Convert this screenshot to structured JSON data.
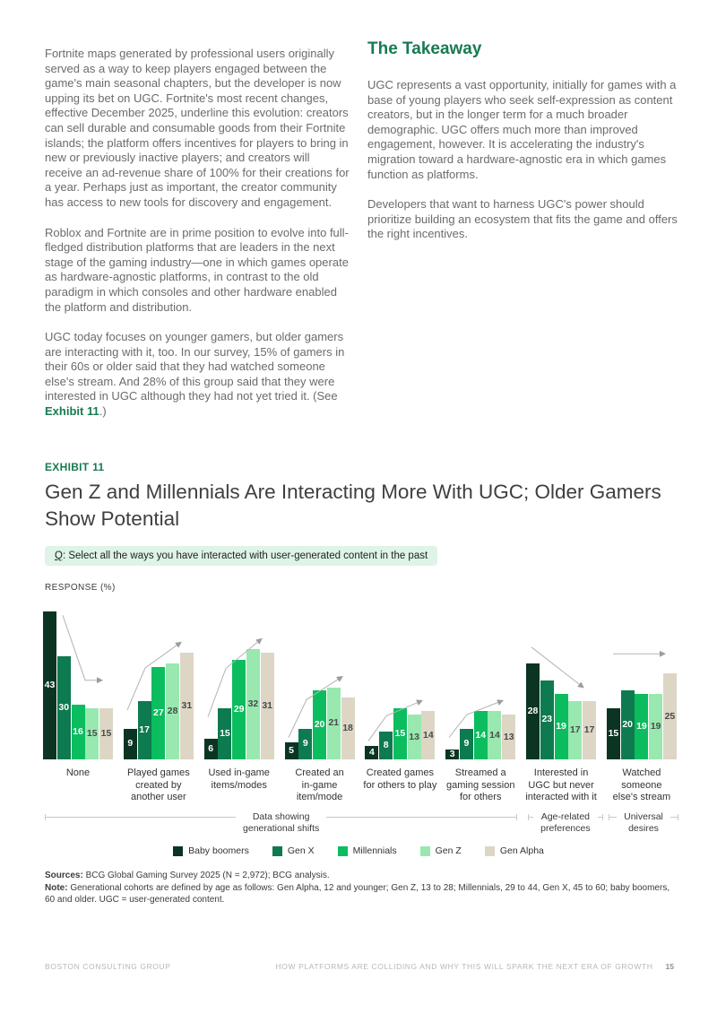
{
  "article": {
    "left_paragraphs": [
      "Fortnite maps generated by professional users originally served as a way to keep players engaged between the game's main seasonal chapters, but the developer is now upping its bet on UGC. Fortnite's most recent changes, effective December 2025, underline this evolution: creators can sell durable and consumable goods from their Fortnite islands; the platform offers incentives for players to bring in new or previously inactive players; and creators will receive an ad-revenue share of 100% for their creations for a year. Perhaps just as important, the creator community has access to new tools for discovery and engagement.",
      "Roblox and Fortnite are in prime position to evolve into full-fledged distribution platforms that are leaders in the next stage of the gaming industry—one in which games operate as hardware-agnostic platforms, in contrast to the old paradigm in which consoles and other hardware enabled the platform and distribution.",
      "UGC today focuses on younger gamers, but older gamers are interacting with it, too. In our survey, 15% of gamers in their 60s or older said that they had watched someone else's stream. And 28% of this group said that they were interested in UGC although they had not yet tried it. (See "
    ],
    "exhibit_link": "Exhibit 11",
    "exhibit_link_suffix": ".)",
    "takeaway_heading": "The Takeaway",
    "takeaway_paragraphs": [
      "UGC represents a vast opportunity, initially for games with a base of young players who seek self-expression as content creators, but in the longer term for a much broader demographic. UGC offers much more than improved engagement, however. It is accelerating the industry's migration toward a hardware-agnostic era in which games function as platforms.",
      "Developers that want to harness UGC's power should prioritize building an ecosystem that fits the game and offers the right incentives."
    ]
  },
  "exhibit": {
    "label": "EXHIBIT 11",
    "title": "Gen Z and Millennials Are Interacting More With UGC; Older Gamers\nShow Potential",
    "question_prefix": "Q",
    "question_rest": ": Select all the ways you have interacted with user-generated content in the past",
    "response_label": "RESPONSE (%)"
  },
  "chart_data": {
    "type": "bar",
    "title": "Gen Z and Millennials Are Interacting More With UGC; Older Gamers Show Potential",
    "question": "Q: Select all the ways you have interacted with user-generated content in the past",
    "ylabel": "RESPONSE (%)",
    "unit": "percent",
    "ylim": [
      0,
      45
    ],
    "grid": false,
    "legend_position": "bottom-center",
    "categories": [
      "None",
      "Played games created by another user",
      "Used in-game items/modes",
      "Created an in-game item/mode",
      "Created games for others to play",
      "Streamed a gaming session for others",
      "Interested in UGC but never interacted with it",
      "Watched someone else's stream"
    ],
    "category_lines": [
      [
        "None"
      ],
      [
        "Played games",
        "created by",
        "another user"
      ],
      [
        "Used in-game",
        "items/modes"
      ],
      [
        "Created an",
        "in-game",
        "item/mode"
      ],
      [
        "Created games",
        "for others to play"
      ],
      [
        "Streamed a",
        "gaming session",
        "for others"
      ],
      [
        "Interested in",
        "UGC but never",
        "interacted with it"
      ],
      [
        "Watched",
        "someone",
        "else's stream"
      ]
    ],
    "series": [
      {
        "name": "Baby boomers",
        "color": "#0b3423",
        "values": [
          43,
          9,
          6,
          5,
          4,
          3,
          28,
          15
        ]
      },
      {
        "name": "Gen X",
        "color": "#0e7a50",
        "values": [
          30,
          17,
          15,
          9,
          8,
          9,
          23,
          20
        ]
      },
      {
        "name": "Millennials",
        "color": "#0bbd5e",
        "values": [
          16,
          27,
          29,
          20,
          15,
          14,
          19,
          19
        ]
      },
      {
        "name": "Gen Z",
        "color": "#98e8b0",
        "values": [
          15,
          28,
          32,
          21,
          13,
          14,
          17,
          19
        ]
      },
      {
        "name": "Gen Alpha",
        "color": "#ddd6c5",
        "values": [
          15,
          31,
          31,
          18,
          14,
          13,
          17,
          25
        ]
      }
    ],
    "group_trends": [
      "down-bend",
      "up",
      "up",
      "up",
      "up",
      "up",
      "down",
      "flat"
    ],
    "annotations": [
      {
        "label": "Data showing generational shifts",
        "label_lines": [
          "Data showing",
          "generational shifts"
        ],
        "span": [
          0,
          5
        ]
      },
      {
        "label": "Age-related preferences",
        "label_lines": [
          "Age-related",
          "preferences"
        ],
        "span": [
          6,
          6
        ]
      },
      {
        "label": "Universal desires",
        "label_lines": [
          "Universal",
          "desires"
        ],
        "span": [
          7,
          7
        ]
      }
    ]
  },
  "footnotes": {
    "sources_label": "Sources:",
    "sources_text": " BCG Global Gaming Survey 2025 (N = 2,972); BCG analysis.",
    "note_label": "Note:",
    "note_text": " Generational cohorts are defined by age as follows: Gen Alpha, 12 and younger; Gen Z, 13 to 28; Millennials, 29 to 44, Gen X, 45 to 60; baby boomers, 60 and older. UGC = user-generated content."
  },
  "footer": {
    "left": "BOSTON CONSULTING GROUP",
    "right": "HOW PLATFORMS ARE COLLIDING AND WHY THIS WILL SPARK THE NEXT ERA OF GROWTH",
    "page_number": "15"
  },
  "colors": {
    "accent_green": "#177a52",
    "question_bg": "#def4e6",
    "arrow": "#b3b3b3",
    "bar_label_light": "#ffffff",
    "bar_label_dark": "#4a4a4a"
  }
}
